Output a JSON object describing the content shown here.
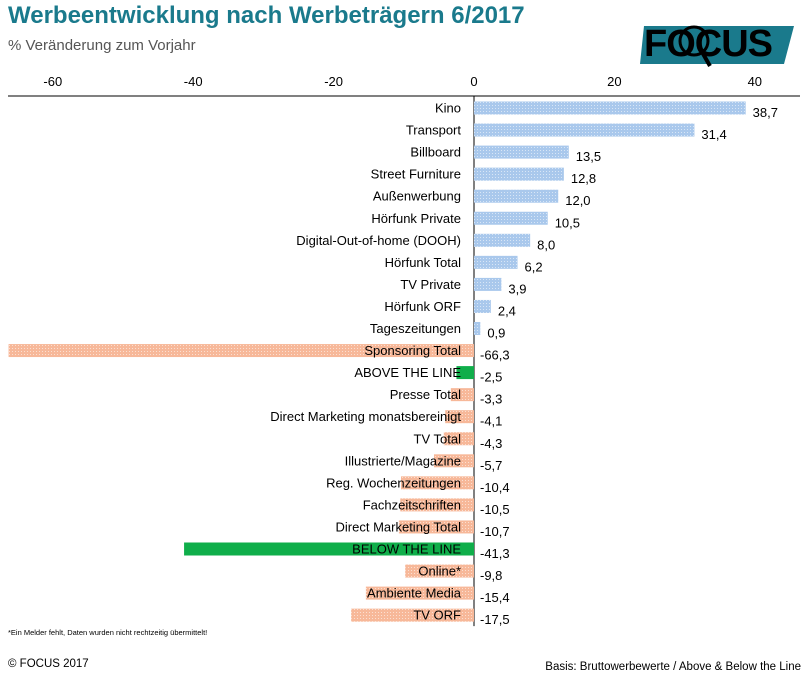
{
  "header": {
    "title": "Werbeentwicklung nach Werbeträgern 6/2017",
    "subtitle": "% Veränderung zum Vorjahr",
    "logo_text": "FOCUS"
  },
  "footer": {
    "footnote": "*Ein Melder fehlt, Daten wurden nicht rechtzeitig übermittelt!",
    "copyright": "© FOCUS 2017",
    "basis": "Basis: Bruttowerbewerte / Above & Below the Line"
  },
  "colors": {
    "positive": "#a9c8ec",
    "negative": "#f7b899",
    "highlight": "#0fae4a",
    "title": "#1a7a8c"
  },
  "chart_data": {
    "type": "bar",
    "orientation": "horizontal",
    "title": "Werbeentwicklung nach Werbeträgern 6/2017",
    "subtitle": "% Veränderung zum Vorjahr",
    "xlim": [
      -66,
      42
    ],
    "xticks": [
      -60,
      -40,
      -20,
      0,
      20,
      40
    ],
    "xtick_labels": [
      "-60",
      "-40",
      "-20",
      "0",
      "20",
      "40"
    ],
    "categories": [
      "Kino",
      "Transport",
      "Billboard",
      "Street Furniture",
      "Außenwerbung",
      "Hörfunk Private",
      "Digital-Out-of-home (DOOH)",
      "Hörfunk Total",
      "TV Private",
      "Hörfunk ORF",
      "Tageszeitungen",
      "Sponsoring Total",
      "ABOVE THE LINE",
      "Presse Total",
      "Direct Marketing monatsbereinigt",
      "TV Total",
      "Illustrierte/Magazine",
      "Reg. Wochenzeitungen",
      "Fachzeitschriften",
      "Direct Marketing Total",
      "BELOW THE LINE",
      "Online*",
      "Ambiente Media",
      "TV ORF"
    ],
    "values": [
      38.7,
      31.4,
      13.5,
      12.8,
      12.0,
      10.5,
      8.0,
      6.2,
      3.9,
      2.4,
      0.9,
      -66.3,
      -2.5,
      -3.3,
      -4.1,
      -4.3,
      -5.7,
      -10.4,
      -10.5,
      -10.7,
      -41.3,
      -9.8,
      -15.4,
      -17.5
    ],
    "value_labels": [
      "38,7",
      "31,4",
      "13,5",
      "12,8",
      "12,0",
      "10,5",
      "8,0",
      "6,2",
      "3,9",
      "2,4",
      "0,9",
      "-66,3",
      "-2,5",
      "-3,3",
      "-4,1",
      "-4,3",
      "-5,7",
      "-10,4",
      "-10,5",
      "-10,7",
      "-41,3",
      "-9,8",
      "-15,4",
      "-17,5"
    ],
    "highlighted": [
      "ABOVE THE LINE",
      "BELOW THE LINE"
    ]
  }
}
